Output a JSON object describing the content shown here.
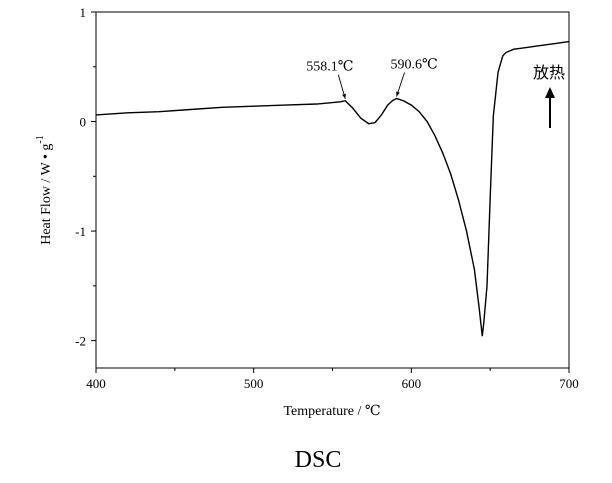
{
  "chart_data": {
    "type": "line",
    "xlabel": "Temperature / ℃",
    "ylabel_main": "Heat Flow / W • g",
    "ylabel_sup": "-1",
    "xlim": [
      400,
      700
    ],
    "ylim": [
      -2.25,
      1.0
    ],
    "x_ticks": [
      400,
      500,
      600,
      700
    ],
    "y_ticks": [
      1,
      0,
      -1,
      -2
    ],
    "grid": false,
    "series": [
      {
        "x": [
          400,
          420,
          440,
          460,
          480,
          500,
          520,
          540,
          555,
          558.1,
          563,
          568,
          573,
          577,
          581,
          585,
          588,
          590.6,
          595,
          600,
          605,
          610,
          615,
          620,
          625,
          630,
          635,
          640,
          643,
          645,
          646,
          648,
          650,
          652,
          655,
          658,
          660,
          665,
          670,
          680,
          690,
          700
        ],
        "y": [
          0.06,
          0.08,
          0.09,
          0.11,
          0.13,
          0.14,
          0.15,
          0.16,
          0.18,
          0.19,
          0.12,
          0.03,
          -0.02,
          -0.01,
          0.06,
          0.15,
          0.19,
          0.21,
          0.19,
          0.15,
          0.09,
          0.0,
          -0.13,
          -0.29,
          -0.48,
          -0.72,
          -1.0,
          -1.35,
          -1.7,
          -1.96,
          -1.83,
          -1.5,
          -0.7,
          0.05,
          0.45,
          0.6,
          0.63,
          0.66,
          0.67,
          0.69,
          0.71,
          0.73
        ]
      }
    ],
    "annotations": [
      {
        "text": "558.1℃",
        "x": 558.1,
        "y": 0.19
      },
      {
        "text": "590.6℃",
        "x": 590.6,
        "y": 0.21
      }
    ],
    "marker_text": "放热",
    "caption": "DSC"
  }
}
